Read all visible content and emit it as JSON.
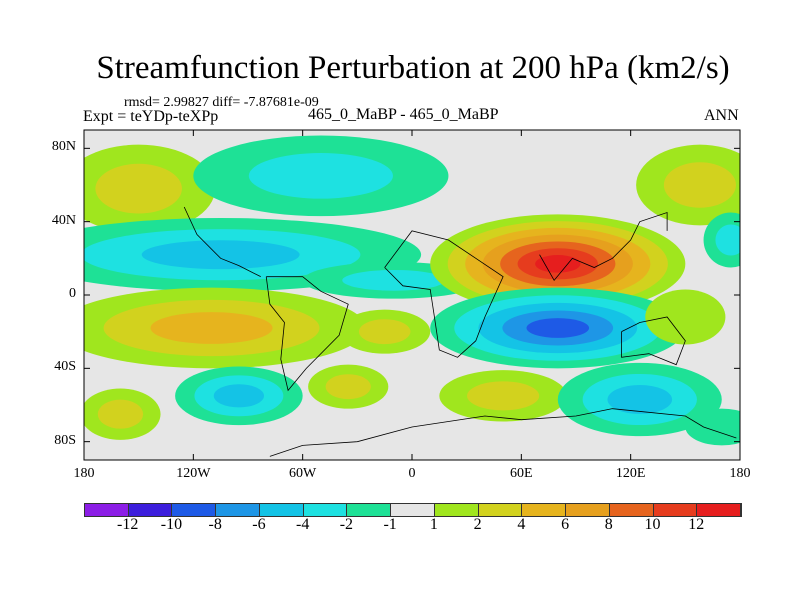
{
  "title": "Streamfunction Perturbation at 200 hPa (km2/s)",
  "stats": "rmsd= 2.99827 diff= -7.87681e-09",
  "left_label": "Expt = teYDp-teXPp",
  "center_label": "465_0_MaBP - 465_0_MaBP",
  "right_label": "ANN",
  "chart_data": {
    "type": "contour-map",
    "x_ticks": [
      "180",
      "120W",
      "60W",
      "0",
      "60E",
      "120E",
      "180"
    ],
    "x_tick_lons": [
      -180,
      -120,
      -60,
      0,
      60,
      120,
      180
    ],
    "y_ticks": [
      "80N",
      "40N",
      "0",
      "40S",
      "80S"
    ],
    "y_tick_lats": [
      80,
      40,
      0,
      -40,
      -80
    ],
    "lon_range": [
      -180,
      180
    ],
    "lat_range": [
      -90,
      90
    ],
    "colorbar_labels": [
      "-12",
      "-10",
      "-8",
      "-6",
      "-4",
      "-2",
      "-1",
      "1",
      "2",
      "4",
      "6",
      "8",
      "10",
      "12"
    ],
    "colorbar_colors": [
      "#8c1ee6",
      "#3c1edc",
      "#1e5ae6",
      "#1e96e6",
      "#14c3e6",
      "#1ee1e1",
      "#1ee196",
      "#e6e6e6",
      "#a0e61e",
      "#d2d21e",
      "#e6b41e",
      "#e6a01e",
      "#e6641e",
      "#e63c1e",
      "#e61e1e"
    ],
    "features": [
      {
        "lon": -150,
        "lat": 58,
        "rlon": 42,
        "rlat": 24,
        "levels": [
          1,
          2
        ]
      },
      {
        "lon": -50,
        "lat": 65,
        "rlon": 70,
        "rlat": 22,
        "levels": [
          -1,
          -2
        ]
      },
      {
        "lon": 158,
        "lat": 60,
        "rlon": 35,
        "rlat": 22,
        "levels": [
          1,
          2
        ]
      },
      {
        "lon": -105,
        "lat": 22,
        "rlon": 110,
        "rlat": 20,
        "levels": [
          -1,
          -2,
          -4
        ]
      },
      {
        "lon": -10,
        "lat": 8,
        "rlon": 50,
        "rlat": 10,
        "levels": [
          -1,
          -2
        ]
      },
      {
        "lon": 80,
        "lat": 17,
        "rlon": 70,
        "rlat": 27,
        "levels": [
          1,
          2,
          4,
          6,
          8,
          10,
          12
        ]
      },
      {
        "lon": 80,
        "lat": -18,
        "rlon": 70,
        "rlat": 22,
        "levels": [
          -1,
          -2,
          -4,
          -6,
          -8
        ]
      },
      {
        "lon": -110,
        "lat": -18,
        "rlon": 85,
        "rlat": 22,
        "levels": [
          1,
          2,
          4
        ]
      },
      {
        "lon": -15,
        "lat": -20,
        "rlon": 25,
        "rlat": 12,
        "levels": [
          1,
          2
        ]
      },
      {
        "lon": -95,
        "lat": -55,
        "rlon": 35,
        "rlat": 16,
        "levels": [
          -1,
          -2,
          -4
        ]
      },
      {
        "lon": -35,
        "lat": -50,
        "rlon": 22,
        "rlat": 12,
        "levels": [
          1,
          2
        ]
      },
      {
        "lon": 50,
        "lat": -55,
        "rlon": 35,
        "rlat": 14,
        "levels": [
          1,
          2
        ]
      },
      {
        "lon": 125,
        "lat": -57,
        "rlon": 45,
        "rlat": 20,
        "levels": [
          -1,
          -2,
          -4
        ]
      },
      {
        "lon": -160,
        "lat": -65,
        "rlon": 22,
        "rlat": 14,
        "levels": [
          1,
          2
        ]
      },
      {
        "lon": 150,
        "lat": -12,
        "rlon": 22,
        "rlat": 15,
        "levels": [
          1
        ]
      },
      {
        "lon": 175,
        "lat": 30,
        "rlon": 15,
        "rlat": 15,
        "levels": [
          -1,
          -2
        ]
      },
      {
        "lon": 170,
        "lat": -72,
        "rlon": 20,
        "rlat": 10,
        "levels": [
          -1
        ]
      }
    ]
  }
}
